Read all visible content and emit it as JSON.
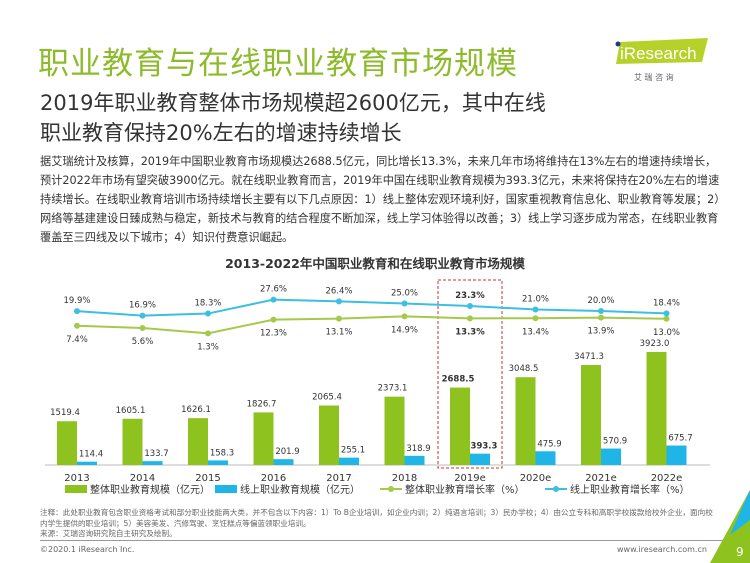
{
  "header": {
    "title": "职业教育与在线职业教育市场规模",
    "subtitle": "2019年职业教育整体市场规模超2600亿元，其中在线职业教育保持20%左右的增速持续增长",
    "body": "据艾瑞统计及核算，2019年中国职业教育市场规模达2688.5亿元，同比增长13.3%，未来几年市场将维持在13%左右的增速持续增长，预计2022年市场有望突破3900亿元。就在线职业教育而言，2019年中国在线职业教育规模为393.3亿元，未来将保持在20%左右的增速持续增长。在线职业教育培训市场持续增长主要有以下几点原因：1）线上整体宏观环境利好，国家重视教育信息化、职业教育等发展；2）网络等基建建设日臻成熟与稳定，新技术与教育的结合程度不断加深，线上学习体验得以改善；3）线上学习逐步成为常态，在线职业教育覆盖至三四线及以下城市；4）知识付费意识崛起。"
  },
  "logo": {
    "brand": "iResearch",
    "cn": "艾 瑞 咨 询"
  },
  "chart_data": {
    "type": "bar+line",
    "title": "2013-2022年中国职业教育和在线职业教育市场规模",
    "categories": [
      "2013",
      "2014",
      "2015",
      "2016",
      "2017",
      "2018",
      "2019e",
      "2020e",
      "2021e",
      "2022e"
    ],
    "highlight": "2019e",
    "series": [
      {
        "name": "整体职业教育规模（亿元）",
        "type": "bar",
        "color": "#8dc21f",
        "values": [
          1519.4,
          1605.1,
          1626.1,
          1826.7,
          2065.4,
          2373.1,
          2688.5,
          3048.5,
          3471.3,
          3923.0
        ],
        "labels": [
          "1519.4",
          "1605.1",
          "1626.1",
          "1826.7",
          "2065.4",
          "2373.1",
          "2688.5",
          "3048.5",
          "3471.3",
          "3923.0"
        ]
      },
      {
        "name": "线上职业教育规模（亿元）",
        "type": "bar",
        "color": "#1fb5e6",
        "values": [
          114.4,
          133.7,
          158.3,
          201.9,
          255.1,
          318.9,
          393.3,
          475.9,
          570.9,
          675.7
        ],
        "labels": [
          "114.4",
          "133.7",
          "158.3",
          "201.9",
          "255.1",
          "318.9",
          "393.3",
          "475.9",
          "570.9",
          "675.7"
        ]
      },
      {
        "name": "整体职业教育增长率（%）",
        "type": "line",
        "color": "#a5c94a",
        "values": [
          7.4,
          5.6,
          1.3,
          12.3,
          13.1,
          14.9,
          13.3,
          13.4,
          13.9,
          13.0
        ],
        "labels": [
          "7.4%",
          "5.6%",
          "1.3%",
          "12.3%",
          "13.1%",
          "14.9%",
          "13.3%",
          "13.4%",
          "13.9%",
          "13.0%"
        ]
      },
      {
        "name": "线上职业教育增长率（%）",
        "type": "line",
        "color": "#3cbfe0",
        "values": [
          19.9,
          16.9,
          18.3,
          27.6,
          26.4,
          25.0,
          23.3,
          21.0,
          20.0,
          18.4
        ],
        "labels": [
          "19.9%",
          "16.9%",
          "18.3%",
          "27.6%",
          "26.4%",
          "25.0%",
          "23.3%",
          "21.0%",
          "20.0%",
          "18.4%"
        ]
      }
    ]
  },
  "notes": {
    "note": "注释：此处职业教育包含职业资格考试和部分职业技能两大类，并不包含以下内容：1）To B企业培训，如企业内训；2）纯语言培训；3）民办学校；4）由公立专科和高职学校拨款给校外企业，面向校内学生提供的职业培训；5）美容美发、汽修驾驶、烹饪糕点等偏蓝领职业培训。",
    "source": "来源：艾瑞咨询研究院自主研究及绘制。"
  },
  "footer": {
    "copyright": "©2020.1 iResearch Inc.",
    "url": "www.iresearch.com.cn",
    "page": "9"
  }
}
